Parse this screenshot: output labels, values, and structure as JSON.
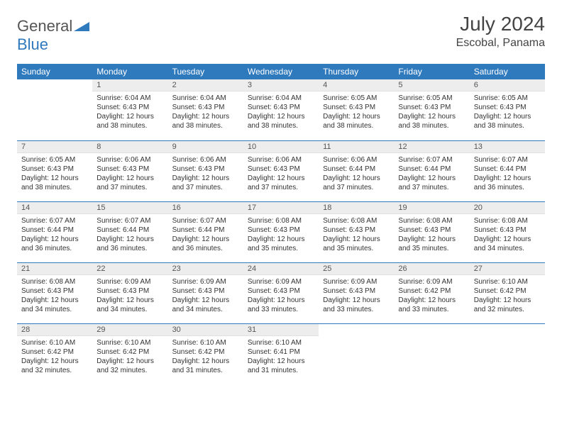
{
  "brand": {
    "text1": "General",
    "text2": "Blue"
  },
  "title": "July 2024",
  "location": "Escobal, Panama",
  "colors": {
    "header_bg": "#2f79bd",
    "header_fg": "#ffffff",
    "daynum_bg": "#ededed",
    "row_border": "#2f79bd",
    "page_bg": "#ffffff",
    "text": "#333333"
  },
  "day_headers": [
    "Sunday",
    "Monday",
    "Tuesday",
    "Wednesday",
    "Thursday",
    "Friday",
    "Saturday"
  ],
  "weeks": [
    [
      {
        "n": "",
        "sr": "",
        "ss": "",
        "dl": ""
      },
      {
        "n": "1",
        "sr": "6:04 AM",
        "ss": "6:43 PM",
        "dl": "12 hours and 38 minutes."
      },
      {
        "n": "2",
        "sr": "6:04 AM",
        "ss": "6:43 PM",
        "dl": "12 hours and 38 minutes."
      },
      {
        "n": "3",
        "sr": "6:04 AM",
        "ss": "6:43 PM",
        "dl": "12 hours and 38 minutes."
      },
      {
        "n": "4",
        "sr": "6:05 AM",
        "ss": "6:43 PM",
        "dl": "12 hours and 38 minutes."
      },
      {
        "n": "5",
        "sr": "6:05 AM",
        "ss": "6:43 PM",
        "dl": "12 hours and 38 minutes."
      },
      {
        "n": "6",
        "sr": "6:05 AM",
        "ss": "6:43 PM",
        "dl": "12 hours and 38 minutes."
      }
    ],
    [
      {
        "n": "7",
        "sr": "6:05 AM",
        "ss": "6:43 PM",
        "dl": "12 hours and 38 minutes."
      },
      {
        "n": "8",
        "sr": "6:06 AM",
        "ss": "6:43 PM",
        "dl": "12 hours and 37 minutes."
      },
      {
        "n": "9",
        "sr": "6:06 AM",
        "ss": "6:43 PM",
        "dl": "12 hours and 37 minutes."
      },
      {
        "n": "10",
        "sr": "6:06 AM",
        "ss": "6:43 PM",
        "dl": "12 hours and 37 minutes."
      },
      {
        "n": "11",
        "sr": "6:06 AM",
        "ss": "6:44 PM",
        "dl": "12 hours and 37 minutes."
      },
      {
        "n": "12",
        "sr": "6:07 AM",
        "ss": "6:44 PM",
        "dl": "12 hours and 37 minutes."
      },
      {
        "n": "13",
        "sr": "6:07 AM",
        "ss": "6:44 PM",
        "dl": "12 hours and 36 minutes."
      }
    ],
    [
      {
        "n": "14",
        "sr": "6:07 AM",
        "ss": "6:44 PM",
        "dl": "12 hours and 36 minutes."
      },
      {
        "n": "15",
        "sr": "6:07 AM",
        "ss": "6:44 PM",
        "dl": "12 hours and 36 minutes."
      },
      {
        "n": "16",
        "sr": "6:07 AM",
        "ss": "6:44 PM",
        "dl": "12 hours and 36 minutes."
      },
      {
        "n": "17",
        "sr": "6:08 AM",
        "ss": "6:43 PM",
        "dl": "12 hours and 35 minutes."
      },
      {
        "n": "18",
        "sr": "6:08 AM",
        "ss": "6:43 PM",
        "dl": "12 hours and 35 minutes."
      },
      {
        "n": "19",
        "sr": "6:08 AM",
        "ss": "6:43 PM",
        "dl": "12 hours and 35 minutes."
      },
      {
        "n": "20",
        "sr": "6:08 AM",
        "ss": "6:43 PM",
        "dl": "12 hours and 34 minutes."
      }
    ],
    [
      {
        "n": "21",
        "sr": "6:08 AM",
        "ss": "6:43 PM",
        "dl": "12 hours and 34 minutes."
      },
      {
        "n": "22",
        "sr": "6:09 AM",
        "ss": "6:43 PM",
        "dl": "12 hours and 34 minutes."
      },
      {
        "n": "23",
        "sr": "6:09 AM",
        "ss": "6:43 PM",
        "dl": "12 hours and 34 minutes."
      },
      {
        "n": "24",
        "sr": "6:09 AM",
        "ss": "6:43 PM",
        "dl": "12 hours and 33 minutes."
      },
      {
        "n": "25",
        "sr": "6:09 AM",
        "ss": "6:43 PM",
        "dl": "12 hours and 33 minutes."
      },
      {
        "n": "26",
        "sr": "6:09 AM",
        "ss": "6:42 PM",
        "dl": "12 hours and 33 minutes."
      },
      {
        "n": "27",
        "sr": "6:10 AM",
        "ss": "6:42 PM",
        "dl": "12 hours and 32 minutes."
      }
    ],
    [
      {
        "n": "28",
        "sr": "6:10 AM",
        "ss": "6:42 PM",
        "dl": "12 hours and 32 minutes."
      },
      {
        "n": "29",
        "sr": "6:10 AM",
        "ss": "6:42 PM",
        "dl": "12 hours and 32 minutes."
      },
      {
        "n": "30",
        "sr": "6:10 AM",
        "ss": "6:42 PM",
        "dl": "12 hours and 31 minutes."
      },
      {
        "n": "31",
        "sr": "6:10 AM",
        "ss": "6:41 PM",
        "dl": "12 hours and 31 minutes."
      },
      {
        "n": "",
        "sr": "",
        "ss": "",
        "dl": ""
      },
      {
        "n": "",
        "sr": "",
        "ss": "",
        "dl": ""
      },
      {
        "n": "",
        "sr": "",
        "ss": "",
        "dl": ""
      }
    ]
  ],
  "labels": {
    "sunrise": "Sunrise: ",
    "sunset": "Sunset: ",
    "daylight": "Daylight: "
  }
}
